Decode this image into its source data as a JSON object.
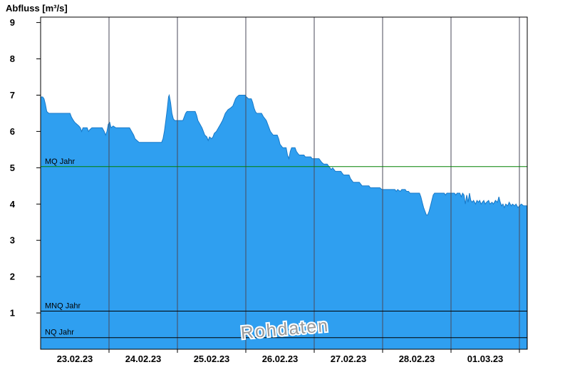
{
  "page": {
    "title": "Abfluss [m³/s]"
  },
  "chart_data": {
    "type": "area",
    "title": "Abfluss [m³/s]",
    "ylabel": "Abfluss [m³/s]",
    "xlabel": "",
    "watermark": "Rohdaten",
    "legend": "none",
    "grid": "vertical-day-lines",
    "ylim": [
      0,
      9.15
    ],
    "xlim_days": [
      0,
      7.115
    ],
    "y_ticks": [
      "1",
      "2",
      "3",
      "4",
      "5",
      "6",
      "7",
      "8",
      "9"
    ],
    "x_labels": [
      "23.02.23",
      "24.02.23",
      "25.02.23",
      "26.02.23",
      "27.02.23",
      "28.02.23",
      "01.03.23"
    ],
    "colors": {
      "area": "#2f9ff0",
      "area_edge": "#1879c8",
      "grid": "#4a4a5a",
      "frame": "#000000",
      "tick": "#000000",
      "watermark": "#9a9a9a"
    },
    "ref_lines": [
      {
        "label": "MQ Jahr",
        "value": 5.03,
        "color": "#008000"
      },
      {
        "label": "MNQ Jahr",
        "value": 1.05,
        "color": "#000000"
      },
      {
        "label": "NQ Jahr",
        "value": 0.32,
        "color": "#000000"
      }
    ],
    "series": [
      {
        "name": "Abfluss Rohdaten",
        "unit": "m³/s",
        "points": [
          [
            0.0,
            6.95
          ],
          [
            0.03,
            6.95
          ],
          [
            0.05,
            6.9
          ],
          [
            0.07,
            6.75
          ],
          [
            0.09,
            6.55
          ],
          [
            0.12,
            6.5
          ],
          [
            0.3,
            6.5
          ],
          [
            0.43,
            6.5
          ],
          [
            0.45,
            6.4
          ],
          [
            0.48,
            6.3
          ],
          [
            0.5,
            6.25
          ],
          [
            0.53,
            6.2
          ],
          [
            0.56,
            6.15
          ],
          [
            0.58,
            6.1
          ],
          [
            0.6,
            6.0
          ],
          [
            0.62,
            6.1
          ],
          [
            0.68,
            6.1
          ],
          [
            0.7,
            6.0
          ],
          [
            0.72,
            6.05
          ],
          [
            0.75,
            6.1
          ],
          [
            0.9,
            6.1
          ],
          [
            0.93,
            6.0
          ],
          [
            0.95,
            5.9
          ],
          [
            0.97,
            6.0
          ],
          [
            0.99,
            6.2
          ],
          [
            1.01,
            6.25
          ],
          [
            1.03,
            6.1
          ],
          [
            1.06,
            6.15
          ],
          [
            1.1,
            6.1
          ],
          [
            1.3,
            6.1
          ],
          [
            1.33,
            6.0
          ],
          [
            1.36,
            5.9
          ],
          [
            1.38,
            5.8
          ],
          [
            1.41,
            5.75
          ],
          [
            1.44,
            5.7
          ],
          [
            1.73,
            5.7
          ],
          [
            1.77,
            5.7
          ],
          [
            1.79,
            5.8
          ],
          [
            1.81,
            6.0
          ],
          [
            1.83,
            6.3
          ],
          [
            1.85,
            6.6
          ],
          [
            1.87,
            6.95
          ],
          [
            1.88,
            7.0
          ],
          [
            1.9,
            6.8
          ],
          [
            1.92,
            6.5
          ],
          [
            1.94,
            6.35
          ],
          [
            1.96,
            6.3
          ],
          [
            2.08,
            6.3
          ],
          [
            2.1,
            6.4
          ],
          [
            2.12,
            6.5
          ],
          [
            2.14,
            6.55
          ],
          [
            2.26,
            6.55
          ],
          [
            2.28,
            6.45
          ],
          [
            2.3,
            6.3
          ],
          [
            2.33,
            6.2
          ],
          [
            2.36,
            6.1
          ],
          [
            2.38,
            6.0
          ],
          [
            2.4,
            5.9
          ],
          [
            2.43,
            5.85
          ],
          [
            2.45,
            5.75
          ],
          [
            2.47,
            5.85
          ],
          [
            2.5,
            5.8
          ],
          [
            2.52,
            5.85
          ],
          [
            2.54,
            5.95
          ],
          [
            2.57,
            6.0
          ],
          [
            2.6,
            6.1
          ],
          [
            2.63,
            6.2
          ],
          [
            2.66,
            6.3
          ],
          [
            2.68,
            6.4
          ],
          [
            2.7,
            6.5
          ],
          [
            2.72,
            6.55
          ],
          [
            2.74,
            6.6
          ],
          [
            2.78,
            6.65
          ],
          [
            2.81,
            6.7
          ],
          [
            2.83,
            6.8
          ],
          [
            2.85,
            6.9
          ],
          [
            2.87,
            6.95
          ],
          [
            2.9,
            7.0
          ],
          [
            2.99,
            7.0
          ],
          [
            3.01,
            6.95
          ],
          [
            3.04,
            6.9
          ],
          [
            3.08,
            6.9
          ],
          [
            3.1,
            6.8
          ],
          [
            3.12,
            6.65
          ],
          [
            3.14,
            6.55
          ],
          [
            3.16,
            6.5
          ],
          [
            3.23,
            6.5
          ],
          [
            3.26,
            6.4
          ],
          [
            3.28,
            6.35
          ],
          [
            3.3,
            6.3
          ],
          [
            3.32,
            6.2
          ],
          [
            3.34,
            6.1
          ],
          [
            3.36,
            6.0
          ],
          [
            3.38,
            5.95
          ],
          [
            3.4,
            5.9
          ],
          [
            3.46,
            5.9
          ],
          [
            3.48,
            5.8
          ],
          [
            3.5,
            5.65
          ],
          [
            3.52,
            5.6
          ],
          [
            3.54,
            5.55
          ],
          [
            3.59,
            5.55
          ],
          [
            3.61,
            5.35
          ],
          [
            3.63,
            5.25
          ],
          [
            3.65,
            5.45
          ],
          [
            3.67,
            5.55
          ],
          [
            3.72,
            5.55
          ],
          [
            3.74,
            5.45
          ],
          [
            3.76,
            5.4
          ],
          [
            3.78,
            5.35
          ],
          [
            3.85,
            5.35
          ],
          [
            3.87,
            5.3
          ],
          [
            3.95,
            5.3
          ],
          [
            3.97,
            5.25
          ],
          [
            4.07,
            5.25
          ],
          [
            4.09,
            5.2
          ],
          [
            4.11,
            5.15
          ],
          [
            4.14,
            5.1
          ],
          [
            4.19,
            5.1
          ],
          [
            4.21,
            5.05
          ],
          [
            4.23,
            5.0
          ],
          [
            4.25,
            4.95
          ],
          [
            4.27,
            5.0
          ],
          [
            4.29,
            4.95
          ],
          [
            4.31,
            4.9
          ],
          [
            4.39,
            4.9
          ],
          [
            4.41,
            4.85
          ],
          [
            4.43,
            4.8
          ],
          [
            4.51,
            4.8
          ],
          [
            4.53,
            4.7
          ],
          [
            4.55,
            4.65
          ],
          [
            4.57,
            4.6
          ],
          [
            4.66,
            4.6
          ],
          [
            4.68,
            4.55
          ],
          [
            4.7,
            4.5
          ],
          [
            4.8,
            4.5
          ],
          [
            4.82,
            4.45
          ],
          [
            4.96,
            4.45
          ],
          [
            4.99,
            4.4
          ],
          [
            5.18,
            4.4
          ],
          [
            5.2,
            4.35
          ],
          [
            5.22,
            4.4
          ],
          [
            5.26,
            4.35
          ],
          [
            5.28,
            4.4
          ],
          [
            5.33,
            4.4
          ],
          [
            5.35,
            4.35
          ],
          [
            5.38,
            4.35
          ],
          [
            5.4,
            4.3
          ],
          [
            5.54,
            4.3
          ],
          [
            5.56,
            4.2
          ],
          [
            5.58,
            4.05
          ],
          [
            5.6,
            3.9
          ],
          [
            5.62,
            3.8
          ],
          [
            5.64,
            3.7
          ],
          [
            5.66,
            3.7
          ],
          [
            5.68,
            3.8
          ],
          [
            5.7,
            3.95
          ],
          [
            5.72,
            4.1
          ],
          [
            5.74,
            4.25
          ],
          [
            5.76,
            4.3
          ],
          [
            5.9,
            4.3
          ],
          [
            5.92,
            4.25
          ],
          [
            5.94,
            4.3
          ],
          [
            6.05,
            4.3
          ],
          [
            6.07,
            4.25
          ],
          [
            6.09,
            4.3
          ],
          [
            6.13,
            4.3
          ],
          [
            6.15,
            4.2
          ],
          [
            6.17,
            4.3
          ],
          [
            6.19,
            4.25
          ],
          [
            6.21,
            4.0
          ],
          [
            6.23,
            4.25
          ],
          [
            6.25,
            4.05
          ],
          [
            6.27,
            4.3
          ],
          [
            6.29,
            4.1
          ],
          [
            6.31,
            4.05
          ],
          [
            6.33,
            4.1
          ],
          [
            6.36,
            4.0
          ],
          [
            6.38,
            4.1
          ],
          [
            6.4,
            4.05
          ],
          [
            6.42,
            4.1
          ],
          [
            6.44,
            4.0
          ],
          [
            6.46,
            4.05
          ],
          [
            6.48,
            4.1
          ],
          [
            6.5,
            4.0
          ],
          [
            6.52,
            4.05
          ],
          [
            6.55,
            4.1
          ],
          [
            6.57,
            4.0
          ],
          [
            6.6,
            4.05
          ],
          [
            6.62,
            4.0
          ],
          [
            6.65,
            4.1
          ],
          [
            6.68,
            4.05
          ],
          [
            6.7,
            4.2
          ],
          [
            6.72,
            4.05
          ],
          [
            6.74,
            3.95
          ],
          [
            6.76,
            4.0
          ],
          [
            6.78,
            3.9
          ],
          [
            6.8,
            4.0
          ],
          [
            6.83,
            3.95
          ],
          [
            6.85,
            4.05
          ],
          [
            6.88,
            3.95
          ],
          [
            6.9,
            4.0
          ],
          [
            6.93,
            3.95
          ],
          [
            6.95,
            4.0
          ],
          [
            6.98,
            3.9
          ],
          [
            7.0,
            3.95
          ],
          [
            7.03,
            4.0
          ],
          [
            7.06,
            3.95
          ],
          [
            7.11,
            3.95
          ]
        ]
      }
    ]
  }
}
